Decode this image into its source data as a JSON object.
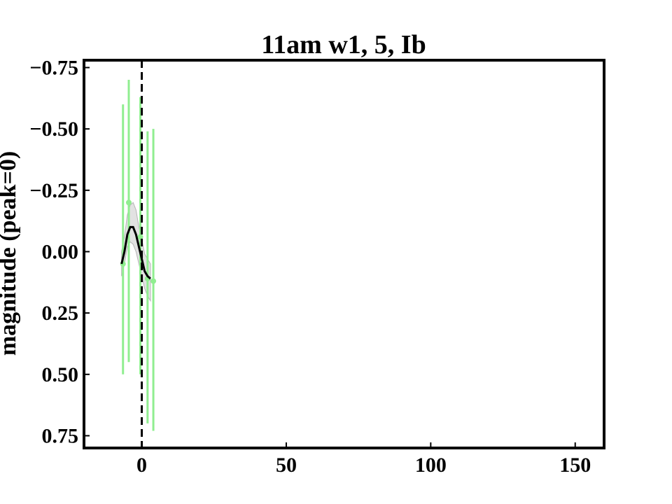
{
  "chart_data": {
    "type": "scatter",
    "title": "11am w1, 5, Ib",
    "xlabel": "",
    "ylabel": "magnitude (peak=0)",
    "xlim": [
      -20,
      160
    ],
    "ylim": [
      0.8,
      -0.78
    ],
    "y_inverted": true,
    "x_ticks": [
      0,
      50,
      100,
      150
    ],
    "y_ticks": [
      -0.75,
      -0.5,
      -0.25,
      0.0,
      0.25,
      0.5,
      0.75
    ],
    "x_tick_labels": [
      "0",
      "50",
      "100",
      "150"
    ],
    "y_tick_labels": [
      "−0.75",
      "−0.50",
      "−0.25",
      "0.00",
      "0.25",
      "0.50",
      "0.75"
    ],
    "peak_line_x": 0,
    "grid": false,
    "points": [
      {
        "x": -6.5,
        "y": 0.05,
        "yerr_low": -0.6,
        "yerr_high": 0.5
      },
      {
        "x": -4.5,
        "y": -0.2,
        "yerr_low": -0.7,
        "yerr_high": 0.45
      },
      {
        "x": -0.5,
        "y": -0.06,
        "yerr_low": -0.63,
        "yerr_high": 0.5
      },
      {
        "x": 2.0,
        "y": 0.11,
        "yerr_low": -0.49,
        "yerr_high": 0.7
      },
      {
        "x": 4.0,
        "y": 0.12,
        "yerr_low": -0.5,
        "yerr_high": 0.73
      }
    ],
    "fit_curve": {
      "x": [
        -7,
        -6,
        -5,
        -4,
        -3,
        -2,
        -1,
        0,
        1,
        2,
        3
      ],
      "y": [
        0.05,
        0.0,
        -0.07,
        -0.1,
        -0.1,
        -0.07,
        -0.02,
        0.03,
        0.08,
        0.1,
        0.11
      ],
      "band_low": [
        0.1,
        0.05,
        -0.02,
        -0.04,
        -0.03,
        0.0,
        0.05,
        0.1,
        0.15,
        0.18,
        0.2
      ],
      "band_high": [
        0.0,
        -0.06,
        -0.15,
        -0.19,
        -0.2,
        -0.17,
        -0.1,
        -0.05,
        0.01,
        0.03,
        0.05
      ]
    },
    "colors": {
      "points": "#90ee90",
      "fit": "#000000",
      "band": "#d3d3d3",
      "peak_line": "#000000"
    }
  }
}
